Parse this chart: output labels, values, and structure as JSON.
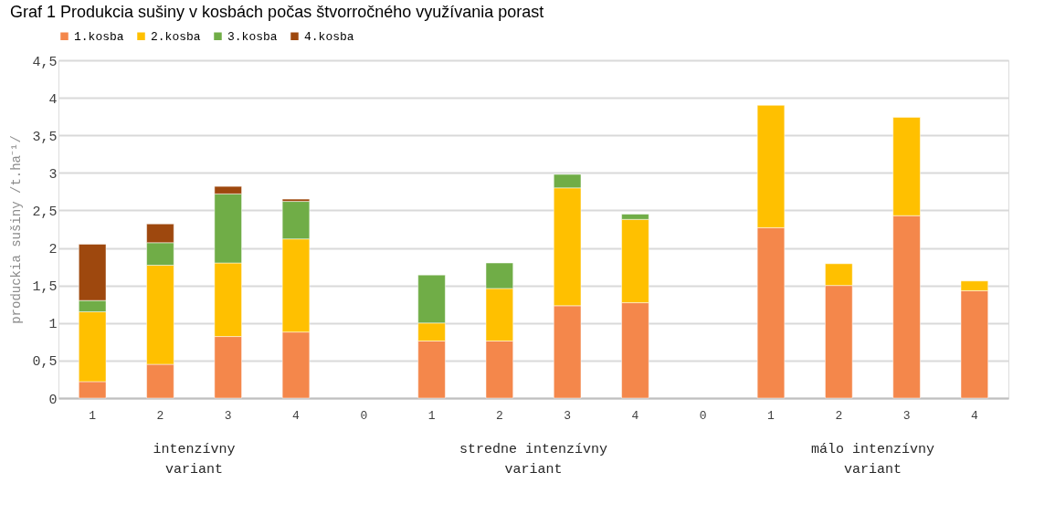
{
  "chart_data": {
    "type": "bar",
    "stacked": true,
    "title": "Graf 1 Produkcia sušiny v kosbách počas štvorročného využívania porast",
    "ylabel": "produckia sušiny /t.ha⁻¹/",
    "categories": [
      "1",
      "2",
      "3",
      "4",
      "0",
      "1",
      "2",
      "3",
      "4",
      "0",
      "1",
      "2",
      "3",
      "4"
    ],
    "series": [
      {
        "name": "1.kosba",
        "color": "#f4874b",
        "values": [
          0.22,
          0.45,
          0.82,
          0.88,
          null,
          0.76,
          0.76,
          1.23,
          1.27,
          null,
          2.27,
          1.5,
          2.43,
          1.43
        ]
      },
      {
        "name": "2.kosba",
        "color": "#ffc000",
        "values": [
          0.93,
          1.32,
          0.98,
          1.24,
          null,
          0.24,
          0.7,
          1.57,
          1.11,
          null,
          1.63,
          0.29,
          1.31,
          0.13
        ]
      },
      {
        "name": "3.kosba",
        "color": "#70ad47",
        "values": [
          0.15,
          0.3,
          0.92,
          0.5,
          null,
          0.64,
          0.34,
          0.18,
          0.07,
          null,
          null,
          null,
          null,
          null
        ]
      },
      {
        "name": "4.kosba",
        "color": "#9e480e",
        "values": [
          0.75,
          0.25,
          0.1,
          0.03,
          null,
          null,
          null,
          null,
          null,
          null,
          null,
          null,
          null,
          null
        ]
      }
    ],
    "ylim": [
      0,
      4.5
    ],
    "yticks": [
      0,
      {
        "value": 0.5,
        "label": "0,5"
      },
      1,
      {
        "value": 1.5,
        "label": "1,5"
      },
      2,
      {
        "value": 2.5,
        "label": "2,5"
      },
      3,
      {
        "value": 3.5,
        "label": "3,5"
      },
      4,
      {
        "value": 4.5,
        "label": "4,5"
      }
    ],
    "grid": "y",
    "legend": "top",
    "annotations": [
      "intenzívny variant",
      "stredne intenzívny variant",
      "málo intenzívny variant"
    ]
  }
}
